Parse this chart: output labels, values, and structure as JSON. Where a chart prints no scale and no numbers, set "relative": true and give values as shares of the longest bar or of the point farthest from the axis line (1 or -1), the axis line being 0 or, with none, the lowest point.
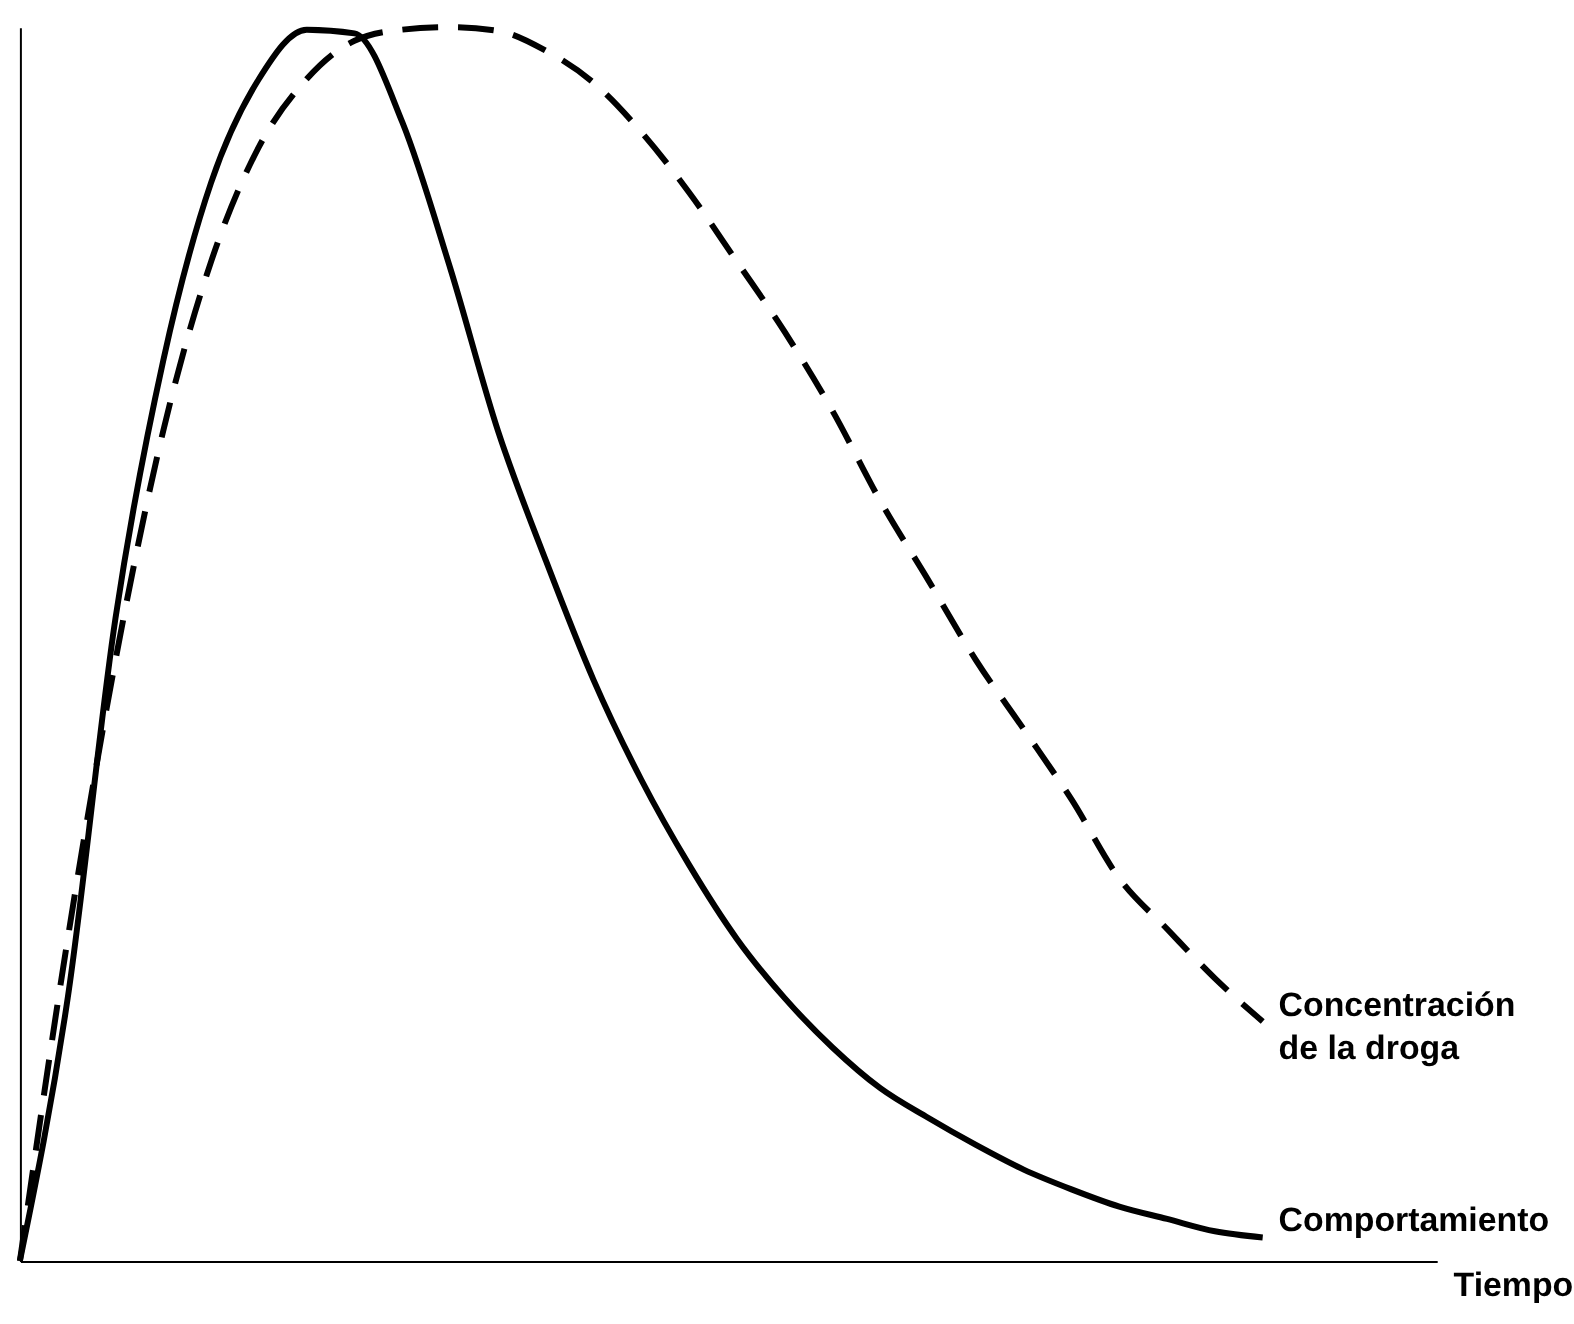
{
  "chart_data": {
    "type": "line",
    "relative": true,
    "xlabel": "Tiempo",
    "legend": false,
    "grid": false,
    "marker": "none",
    "categories": [
      null,
      null,
      null,
      null,
      null,
      null,
      null,
      null,
      null,
      null,
      null,
      null,
      null,
      null,
      null,
      null,
      null,
      null,
      null,
      null,
      null,
      null,
      null,
      null,
      null,
      null,
      null
    ],
    "series": [
      {
        "name": "Concentración de la droga",
        "color": "#000000",
        "line_style": "dashed",
        "values": [
          0,
          0.261,
          0.487,
          0.673,
          0.81,
          0.903,
          0.958,
          0.989,
          0.998,
          1,
          0.997,
          0.981,
          0.955,
          0.915,
          0.866,
          0.81,
          0.753,
          0.689,
          0.616,
          0.552,
          0.487,
          0.431,
          0.374,
          0.31,
          0.269,
          0.229,
          0.194
        ]
      },
      {
        "name": "Comportamiento",
        "color": "#000000",
        "line_style": "solid",
        "values": [
          0,
          0.213,
          0.521,
          0.73,
          0.874,
          0.958,
          0.998,
          0.995,
          0.923,
          0.805,
          0.673,
          0.568,
          0.471,
          0.39,
          0.321,
          0.261,
          0.213,
          0.173,
          0.14,
          0.116,
          0.094,
          0.074,
          0.058,
          0.044,
          0.034,
          0.024,
          0.019
        ]
      }
    ]
  }
}
